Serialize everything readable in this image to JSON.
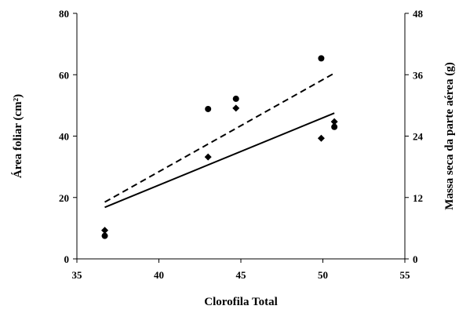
{
  "chart_data": {
    "type": "scatter",
    "xlabel": "Clorofila Total",
    "ylabel_left": "Área foliar (cm²)",
    "ylabel_right": "Massa seca da parte aérea (g)",
    "xlim": [
      35,
      55
    ],
    "ylim_left": [
      0,
      80
    ],
    "ylim_right": [
      0,
      48
    ],
    "x_ticks": [
      "35",
      "40",
      "45",
      "50",
      "55"
    ],
    "y_left_ticks": [
      "0",
      "20",
      "40",
      "60",
      "80"
    ],
    "y_right_ticks": [
      "0",
      "12",
      "24",
      "36",
      "48"
    ],
    "series": [
      {
        "axis": "left",
        "marker": "diamond",
        "line_style": "solid",
        "points": [
          [
            36.7,
            9.3
          ],
          [
            43.0,
            33.2
          ],
          [
            44.7,
            49.1
          ],
          [
            49.9,
            39.3
          ],
          [
            50.7,
            44.7
          ]
        ],
        "trend": [
          [
            36.7,
            16.8
          ],
          [
            50.7,
            47.5
          ]
        ]
      },
      {
        "axis": "right",
        "marker": "circle",
        "line_style": "dashed",
        "points": [
          [
            36.7,
            4.5
          ],
          [
            43.0,
            29.3
          ],
          [
            44.7,
            31.3
          ],
          [
            49.9,
            39.2
          ],
          [
            50.7,
            25.8
          ]
        ],
        "trend": [
          [
            36.7,
            11.1
          ],
          [
            50.7,
            36.3
          ]
        ]
      }
    ]
  }
}
